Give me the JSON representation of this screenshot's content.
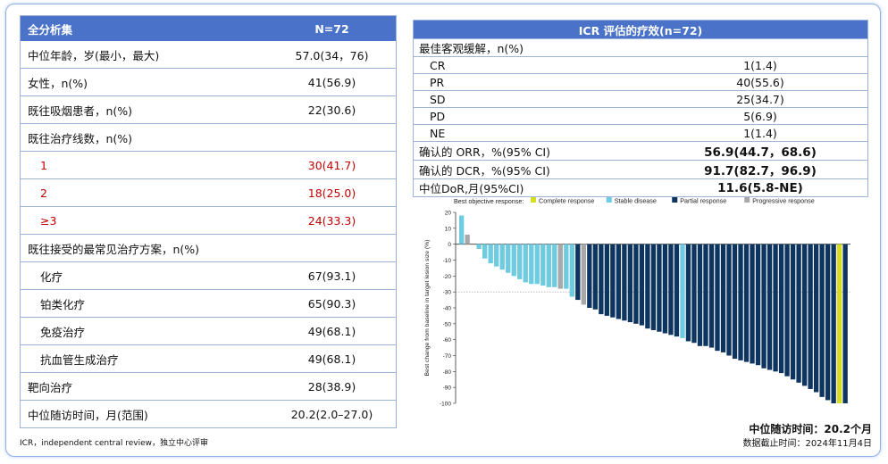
{
  "left_table": {
    "header": [
      "全分析集",
      "N=72"
    ],
    "rows": [
      {
        "label": "中位年龄，岁(最小，最大)",
        "value": "57.0(34，76)",
        "style": ""
      },
      {
        "label": "女性，n(%)",
        "value": "41(56.9)",
        "style": ""
      },
      {
        "label": "既往吸烟患者，n(%)",
        "value": "22(30.6)",
        "style": ""
      },
      {
        "label": "既往治疗线数，n(%)",
        "value": "",
        "style": ""
      },
      {
        "label": "1",
        "value": "30(41.7)",
        "style": "red"
      },
      {
        "label": "2",
        "value": "18(25.0)",
        "style": "red"
      },
      {
        "label": "≥3",
        "value": "24(33.3)",
        "style": "red"
      },
      {
        "label": "既往接受的最常见治疗方案，n(%)",
        "value": "",
        "style": ""
      },
      {
        "label": "化疗",
        "value": "67(93.1)",
        "style": "sub"
      },
      {
        "label": "铂类化疗",
        "value": "65(90.3)",
        "style": "sub"
      },
      {
        "label": "免疫治疗",
        "value": "49(68.1)",
        "style": "sub"
      },
      {
        "label": "抗血管生成治疗",
        "value": "49(68.1)",
        "style": "sub"
      },
      {
        "label": "靶向治疗",
        "value": "28(38.9)",
        "style": ""
      },
      {
        "label": "中位随访时间，月(范围)",
        "value": "20.2(2.0–27.0)",
        "style": ""
      }
    ],
    "footnote": "ICR，independent central review，独立中心评审"
  },
  "right_table": {
    "title": "ICR 评估的疗效(n=72)",
    "rows": [
      {
        "label": "最佳客观缓解，n(%)",
        "value": "",
        "style": ""
      },
      {
        "label": "CR",
        "value": "1(1.4)",
        "style": "sub"
      },
      {
        "label": "PR",
        "value": "40(55.6)",
        "style": "sub"
      },
      {
        "label": "SD",
        "value": "25(34.7)",
        "style": "sub"
      },
      {
        "label": "PD",
        "value": "5(6.9)",
        "style": "sub"
      },
      {
        "label": "NE",
        "value": "1(1.4)",
        "style": "sub"
      },
      {
        "label": "确认的 ORR，%(95% CI)",
        "value": "56.9(44.7，68.6)",
        "style": "bold"
      },
      {
        "label": "确认的 DCR，%(95% CI)",
        "value": "91.7(82.7，96.9)",
        "style": "bold"
      },
      {
        "label": "中位DoR,月(95%CI)",
        "value": "11.6(5.8-NE)",
        "style": "bold"
      }
    ]
  },
  "notes": {
    "followup": "中位随访时间：20.2个月",
    "cutoff": "数据截止时间：2024年11月4日"
  },
  "colors": {
    "header_blue": "#4a72c8",
    "complete": "#d6dc1e",
    "stable": "#6fcbe0",
    "partial": "#0e3560",
    "progressive": "#a8a8a8"
  },
  "chart_data": {
    "type": "bar",
    "title": "",
    "ylabel": "Best change from baseline in target lesion size (%)",
    "ylim": [
      -100,
      20
    ],
    "yticks": [
      20,
      10,
      0,
      -10,
      -20,
      -30,
      -40,
      -50,
      -60,
      -70,
      -80,
      -90,
      -100
    ],
    "reference_line": -30,
    "legend_title": "Best objective response:",
    "legend": [
      {
        "name": "Complete response",
        "key": "CR"
      },
      {
        "name": "Stable disease",
        "key": "SD"
      },
      {
        "name": "Partial response",
        "key": "PR"
      },
      {
        "name": "Progressive response",
        "key": "PD"
      }
    ],
    "values": [
      18,
      6,
      0,
      -3,
      -9,
      -12,
      -14,
      -16,
      -18,
      -20,
      -22,
      -24,
      -25,
      -25,
      -26,
      -27,
      -27,
      -28,
      -28,
      -33,
      -35,
      -38,
      -40,
      -41,
      -44,
      -45,
      -46,
      -47,
      -48,
      -49,
      -50,
      -51,
      -53,
      -54,
      -55,
      -56,
      -57,
      -58,
      -59,
      -61,
      -62,
      -64,
      -64,
      -65,
      -67,
      -68,
      -70,
      -72,
      -73,
      -74,
      -75,
      -76,
      -78,
      -79,
      -80,
      -81,
      -83,
      -85,
      -87,
      -89,
      -91,
      -93,
      -96,
      -98,
      -100,
      -100,
      -100
    ],
    "categories_response": [
      "SD",
      "PD",
      "SD",
      "SD",
      "SD",
      "SD",
      "SD",
      "SD",
      "SD",
      "SD",
      "SD",
      "SD",
      "SD",
      "SD",
      "SD",
      "SD",
      "SD",
      "PD",
      "SD",
      "SD",
      "PR",
      "PD",
      "PR",
      "PR",
      "PR",
      "PR",
      "PR",
      "PR",
      "PR",
      "PR",
      "PR",
      "PR",
      "PR",
      "PR",
      "PR",
      "PR",
      "PR",
      "PR",
      "SD",
      "PR",
      "PR",
      "PR",
      "PR",
      "PR",
      "PR",
      "PR",
      "PR",
      "PR",
      "PR",
      "PR",
      "PR",
      "PR",
      "PR",
      "PR",
      "PR",
      "PR",
      "PR",
      "PR",
      "PR",
      "PR",
      "PR",
      "PR",
      "PR",
      "PR",
      "PR",
      "CR",
      "PR"
    ]
  }
}
